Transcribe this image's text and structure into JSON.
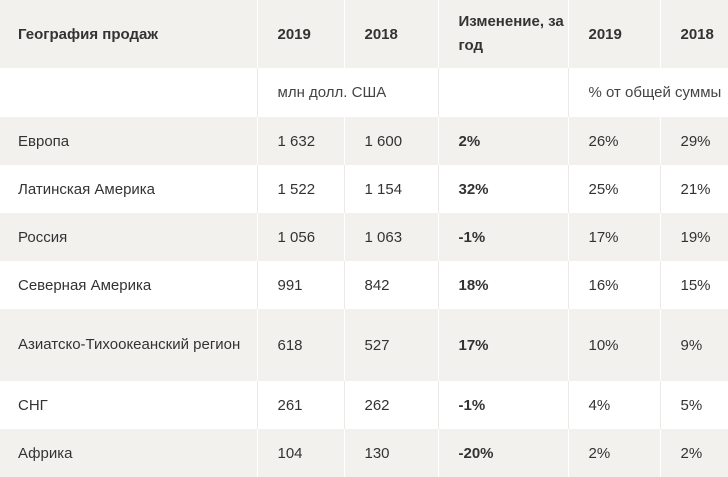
{
  "table": {
    "headers": [
      "География продаж",
      "2019",
      "2018",
      "Изменение, за год",
      "2019",
      "2018"
    ],
    "units": {
      "abs": "млн долл. США",
      "share": "% от общей суммы"
    },
    "rows": [
      {
        "region": "Европа",
        "v2019": "1 632",
        "v2018": "1 600",
        "change": "2%",
        "s2019": "26%",
        "s2018": "29%"
      },
      {
        "region": "Латинская Америка",
        "v2019": "1 522",
        "v2018": "1 154",
        "change": "32%",
        "s2019": "25%",
        "s2018": "21%"
      },
      {
        "region": "Россия",
        "v2019": "1 056",
        "v2018": "1 063",
        "change": "-1%",
        "s2019": "17%",
        "s2018": "19%"
      },
      {
        "region": "Северная Америка",
        "v2019": "991",
        "v2018": "842",
        "change": "18%",
        "s2019": "16%",
        "s2018": "15%"
      },
      {
        "region": "Азиатско-Тихоокеанский регион",
        "v2019": "618",
        "v2018": "527",
        "change": "17%",
        "s2019": "10%",
        "s2018": "9%"
      },
      {
        "region": "СНГ",
        "v2019": "261",
        "v2018": "262",
        "change": "-1%",
        "s2019": "4%",
        "s2018": "5%"
      },
      {
        "region": "Африка",
        "v2019": "104",
        "v2018": "130",
        "change": "-20%",
        "s2019": "2%",
        "s2018": "2%"
      }
    ]
  }
}
